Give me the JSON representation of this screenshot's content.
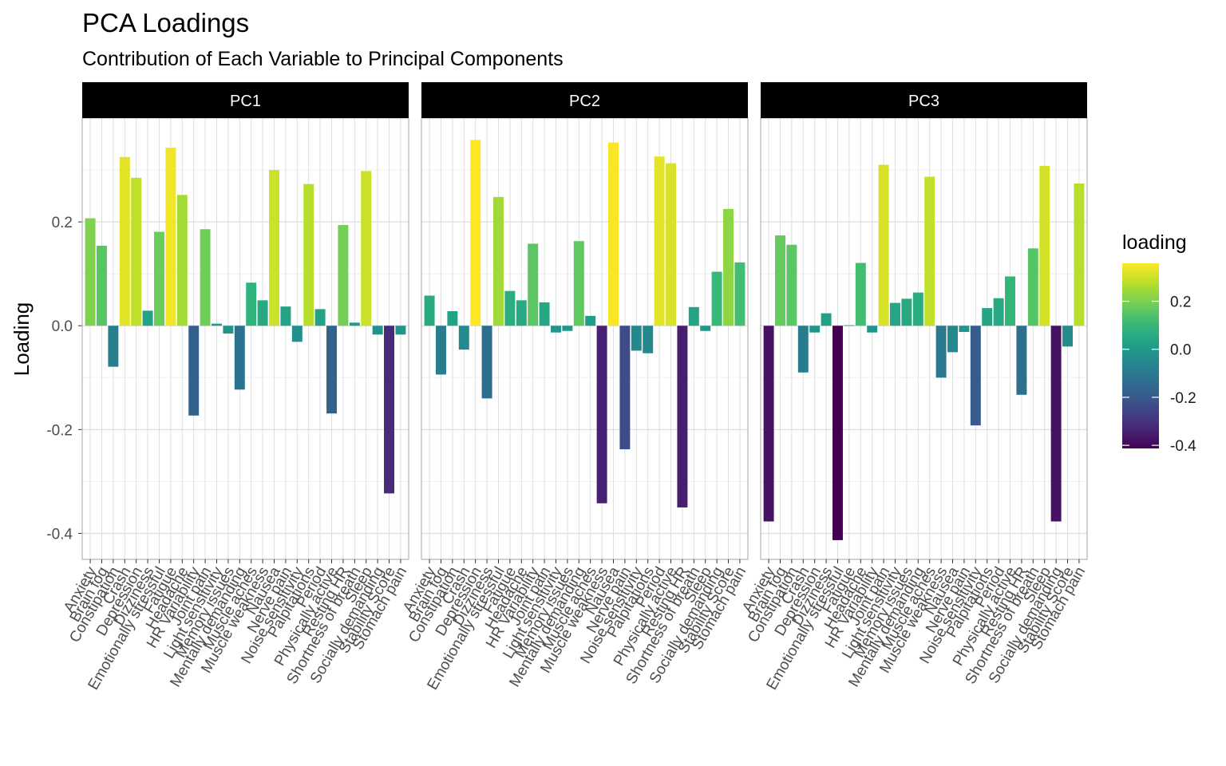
{
  "chart_data": {
    "type": "bar",
    "title": "PCA Loadings",
    "subtitle": "Contribution of Each Variable to Principal Components",
    "ylabel": "Loading",
    "xlabel": "",
    "ylim": [
      -0.45,
      0.4
    ],
    "yticks": [
      -0.4,
      -0.2,
      0.0,
      0.2
    ],
    "ytick_labels": [
      "-0.4",
      "-0.2",
      "0.0",
      "0.2"
    ],
    "grid": true,
    "categories": [
      "Anxiety",
      "Brain fog",
      "Constipation",
      "Crash",
      "Depression",
      "Dizziness",
      "Emotionally stressful",
      "Fatigue",
      "Headache",
      "HR Variability",
      "Joint pain",
      "Light sensitivity",
      "Memory issues",
      "Mentally demanding",
      "Muscle aches",
      "Muscle weakness",
      "Nausea",
      "Nerve pain",
      "Noise sensitivity",
      "Palpitations",
      "Period",
      "Physically active",
      "Resting HR",
      "Shortness of breath",
      "Sleep",
      "Socially demanding",
      "Stability Score",
      "Stomach pain"
    ],
    "series": [
      {
        "name": "PC1",
        "values": [
          0.207,
          0.154,
          -0.079,
          0.325,
          0.285,
          0.029,
          0.181,
          0.343,
          0.252,
          -0.173,
          0.186,
          0.004,
          -0.015,
          -0.123,
          0.083,
          0.049,
          0.3,
          0.037,
          -0.031,
          0.273,
          0.032,
          -0.169,
          0.194,
          0.006,
          0.298,
          -0.017,
          -0.323,
          -0.017
        ]
      },
      {
        "name": "PC2",
        "values": [
          0.058,
          -0.094,
          0.028,
          -0.046,
          0.358,
          -0.14,
          0.248,
          0.067,
          0.049,
          0.158,
          0.045,
          -0.013,
          -0.01,
          0.163,
          0.019,
          -0.342,
          0.353,
          -0.238,
          -0.048,
          -0.053,
          0.326,
          0.313,
          -0.35,
          0.036,
          -0.01,
          0.104,
          0.225,
          0.122
        ]
      },
      {
        "name": "PC3",
        "values": [
          -0.377,
          0.174,
          0.156,
          -0.09,
          -0.013,
          0.024,
          -0.413,
          0.001,
          0.121,
          -0.013,
          0.31,
          0.044,
          0.052,
          0.064,
          0.287,
          -0.1,
          -0.051,
          -0.012,
          -0.192,
          0.034,
          0.053,
          0.095,
          -0.133,
          0.149,
          0.308,
          -0.377,
          -0.04,
          0.274
        ]
      }
    ],
    "legend": {
      "title": "loading",
      "position": "right",
      "ticks": [
        0.2,
        0.0,
        -0.2,
        -0.4
      ],
      "tick_labels": [
        "0.2",
        "0.0",
        "-0.2",
        "-0.4"
      ],
      "range": [
        -0.413,
        0.358
      ]
    },
    "colors": {
      "strip_background": "#000000",
      "strip_text": "#ffffff",
      "grid_major": "#dedede",
      "grid_minor": "#efefef",
      "panel_border": "#b3b3b3",
      "palette": "viridis"
    }
  }
}
